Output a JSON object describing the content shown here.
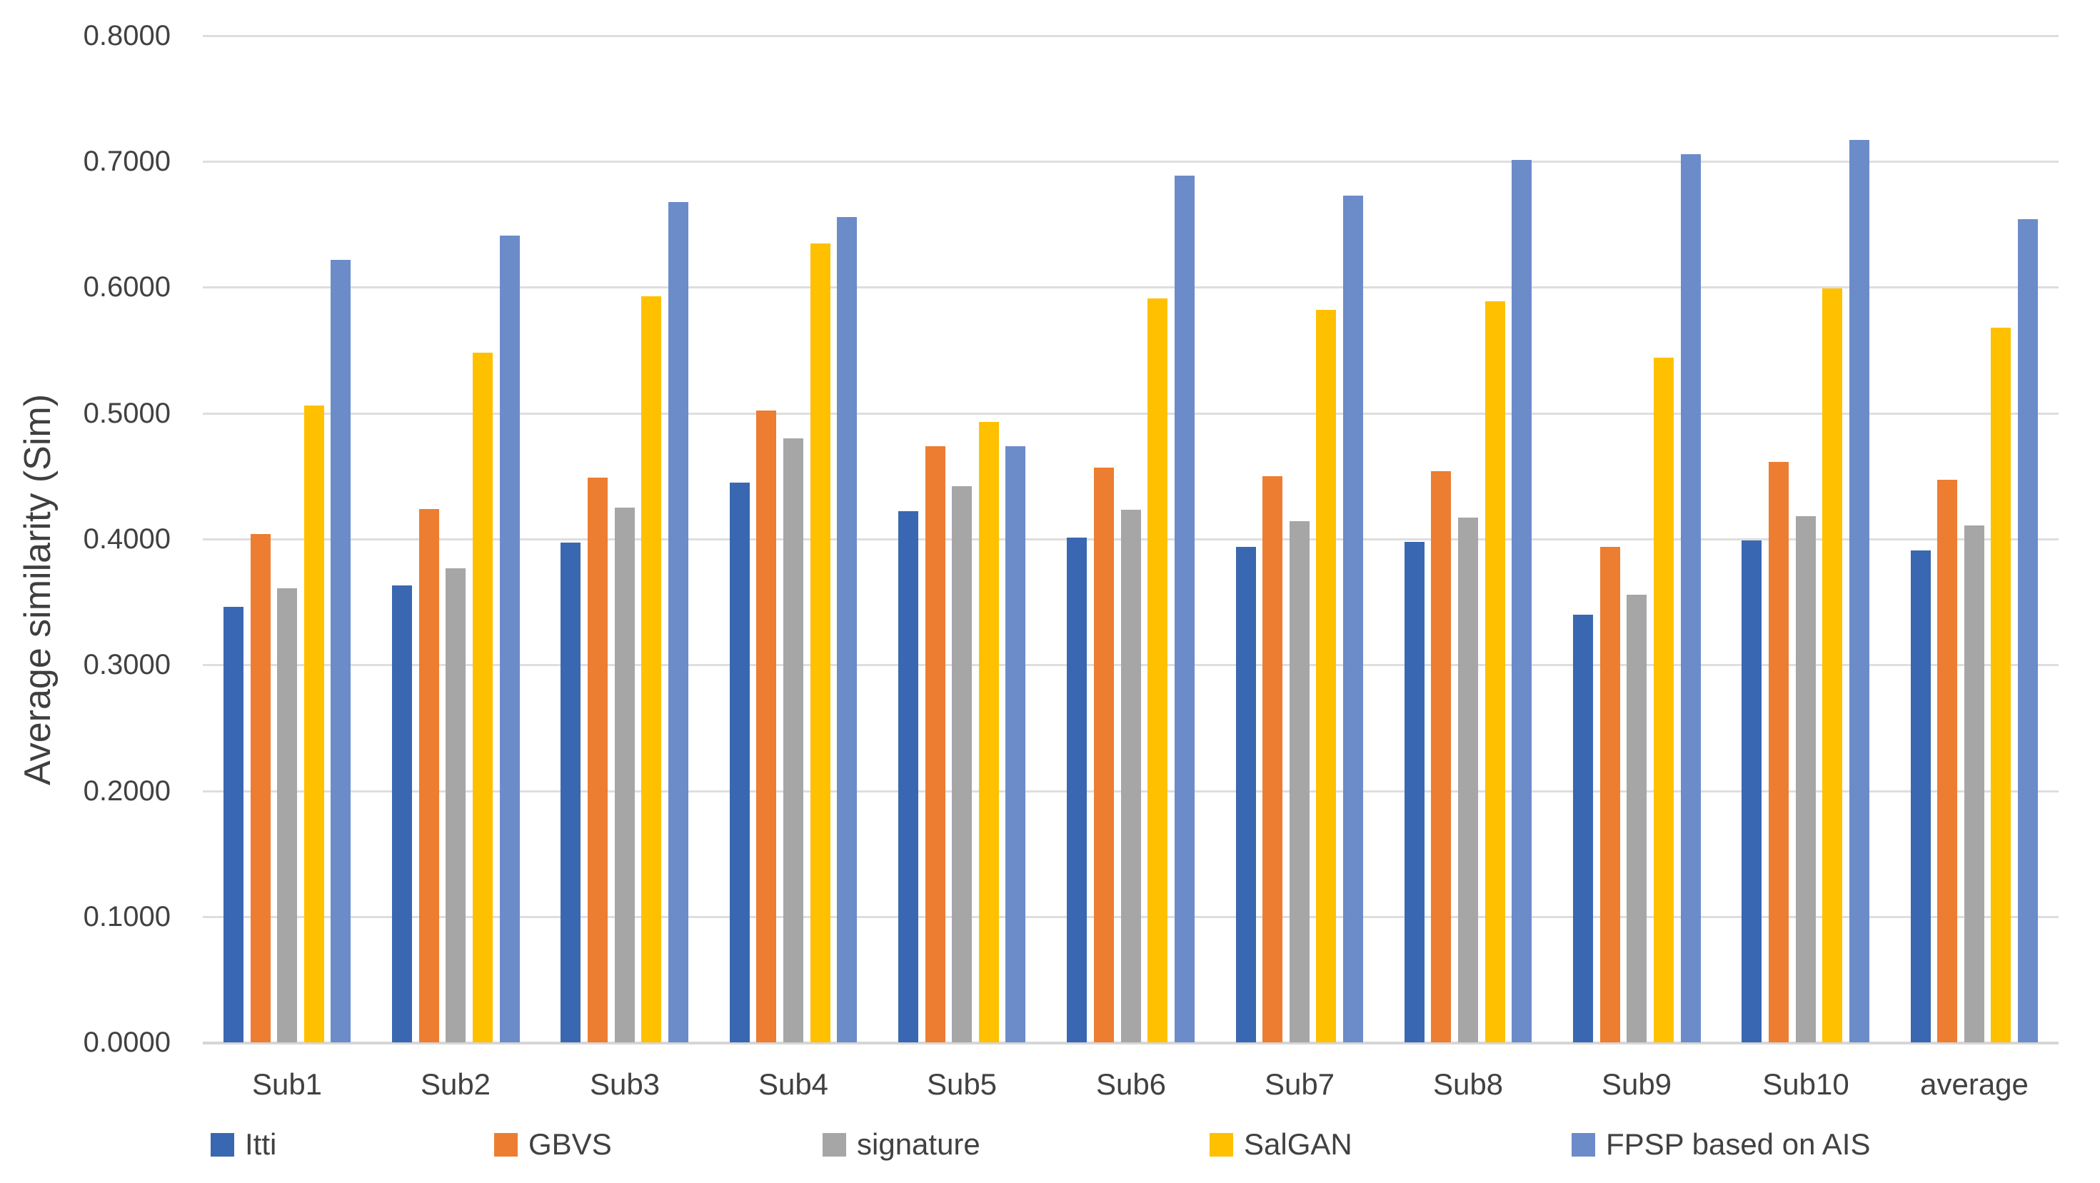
{
  "colors": {
    "grid": "#dedede",
    "axis": "#d6d6d6",
    "text": "#414141",
    "background": "#ffffff"
  },
  "chart_data": {
    "type": "bar",
    "title": "",
    "xlabel": "",
    "ylabel": "Average similarity (Sim)",
    "ylim": [
      0.0,
      0.8
    ],
    "y_tick_step": 0.1,
    "y_ticks": [
      "0.0000",
      "0.1000",
      "0.2000",
      "0.3000",
      "0.4000",
      "0.5000",
      "0.6000",
      "0.7000",
      "0.8000"
    ],
    "grid": true,
    "legend_position": "bottom",
    "categories": [
      "Sub1",
      "Sub2",
      "Sub3",
      "Sub4",
      "Sub5",
      "Sub6",
      "Sub7",
      "Sub8",
      "Sub9",
      "Sub10",
      "average"
    ],
    "series": [
      {
        "name": "Itti",
        "color": "#3a67b1",
        "values": [
          0.346,
          0.363,
          0.397,
          0.445,
          0.422,
          0.401,
          0.394,
          0.398,
          0.34,
          0.399,
          0.391
        ]
      },
      {
        "name": "GBVS",
        "color": "#ed7d31",
        "values": [
          0.404,
          0.424,
          0.449,
          0.502,
          0.474,
          0.457,
          0.45,
          0.454,
          0.394,
          0.461,
          0.447
        ]
      },
      {
        "name": "signature",
        "color": "#a6a6a6",
        "values": [
          0.361,
          0.377,
          0.425,
          0.48,
          0.442,
          0.423,
          0.414,
          0.417,
          0.356,
          0.418,
          0.411
        ]
      },
      {
        "name": "SalGAN",
        "color": "#ffc000",
        "values": [
          0.506,
          0.548,
          0.593,
          0.635,
          0.493,
          0.591,
          0.582,
          0.589,
          0.544,
          0.599,
          0.568
        ]
      },
      {
        "name": "FPSP based on AIS",
        "color": "#6b8cc9",
        "values": [
          0.622,
          0.641,
          0.668,
          0.656,
          0.474,
          0.689,
          0.673,
          0.701,
          0.706,
          0.717,
          0.654
        ]
      }
    ]
  }
}
